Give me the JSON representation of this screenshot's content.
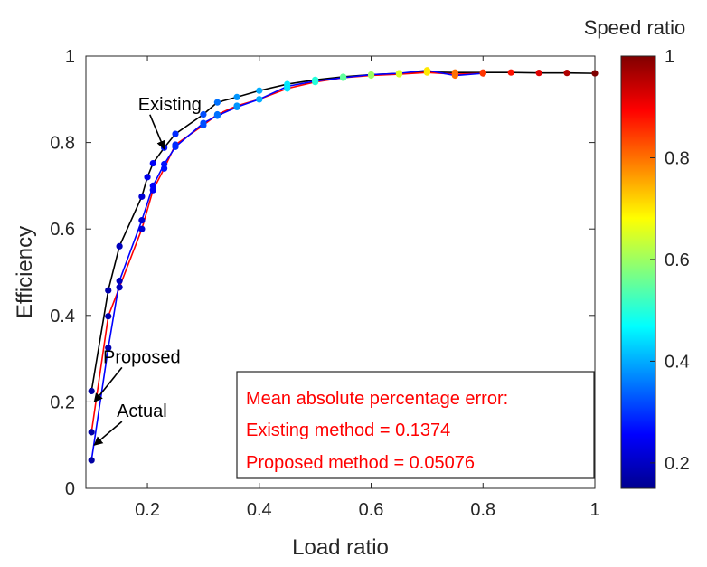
{
  "chart_data": {
    "type": "line",
    "xlabel": "Load ratio",
    "ylabel": "Efficiency",
    "xlim": [
      0.09,
      1.0
    ],
    "ylim": [
      0,
      1
    ],
    "xticks": [
      0.2,
      0.4,
      0.6,
      0.8,
      1
    ],
    "xtick_labels": [
      "0.2",
      "0.4",
      "0.6",
      "0.8",
      "1"
    ],
    "yticks": [
      0,
      0.2,
      0.4,
      0.6,
      0.8,
      1
    ],
    "ytick_labels": [
      "0",
      "0.2",
      "0.4",
      "0.6",
      "0.8",
      "1"
    ],
    "grid": false,
    "colorbar": {
      "title": "Speed ratio",
      "range": [
        0.15,
        1.0
      ],
      "ticks": [
        0.2,
        0.4,
        0.6,
        0.8,
        1
      ],
      "tick_labels": [
        "0.2",
        "0.4",
        "0.6",
        "0.8",
        "1"
      ],
      "colormap": "jet"
    },
    "series": [
      {
        "name": "Existing",
        "line_color": "#000000",
        "x": [
          0.1,
          0.13,
          0.15,
          0.19,
          0.2,
          0.21,
          0.23,
          0.25,
          0.3,
          0.325,
          0.36,
          0.4,
          0.45,
          0.5,
          0.55,
          0.6,
          0.65,
          0.7,
          0.75,
          0.8,
          0.85,
          0.9,
          0.95,
          1.0
        ],
        "y": [
          0.225,
          0.458,
          0.56,
          0.675,
          0.72,
          0.752,
          0.788,
          0.82,
          0.865,
          0.893,
          0.905,
          0.92,
          0.935,
          0.945,
          0.952,
          0.957,
          0.96,
          0.963,
          0.962,
          0.962,
          0.962,
          0.961,
          0.961,
          0.96
        ],
        "speed": [
          0.18,
          0.19,
          0.2,
          0.22,
          0.24,
          0.25,
          0.27,
          0.29,
          0.32,
          0.35,
          0.38,
          0.4,
          0.45,
          0.5,
          0.55,
          0.6,
          0.65,
          0.7,
          0.8,
          0.85,
          0.88,
          0.92,
          0.96,
          1.0
        ]
      },
      {
        "name": "Proposed",
        "line_color": "#ff0000",
        "x": [
          0.1,
          0.13,
          0.15,
          0.19,
          0.21,
          0.23,
          0.25,
          0.3,
          0.325,
          0.36,
          0.4,
          0.45,
          0.5,
          0.55,
          0.6,
          0.65,
          0.7,
          0.75,
          0.8
        ],
        "y": [
          0.13,
          0.398,
          0.465,
          0.6,
          0.69,
          0.74,
          0.795,
          0.84,
          0.865,
          0.885,
          0.9,
          0.925,
          0.94,
          0.95,
          0.955,
          0.958,
          0.962,
          0.958,
          0.96
        ],
        "speed": [
          0.18,
          0.19,
          0.2,
          0.22,
          0.25,
          0.27,
          0.29,
          0.32,
          0.35,
          0.38,
          0.4,
          0.45,
          0.5,
          0.55,
          0.6,
          0.65,
          0.7,
          0.8,
          0.85
        ]
      },
      {
        "name": "Actual",
        "line_color": "#0000ff",
        "x": [
          0.1,
          0.13,
          0.15,
          0.19,
          0.21,
          0.23,
          0.25,
          0.3,
          0.325,
          0.36,
          0.4,
          0.45,
          0.5,
          0.55,
          0.6,
          0.65,
          0.7,
          0.75,
          0.8
        ],
        "y": [
          0.065,
          0.325,
          0.48,
          0.62,
          0.7,
          0.75,
          0.79,
          0.845,
          0.862,
          0.882,
          0.9,
          0.93,
          0.942,
          0.95,
          0.957,
          0.96,
          0.967,
          0.955,
          0.96
        ],
        "speed": [
          0.18,
          0.19,
          0.2,
          0.22,
          0.25,
          0.27,
          0.29,
          0.32,
          0.35,
          0.38,
          0.4,
          0.45,
          0.5,
          0.55,
          0.6,
          0.65,
          0.7,
          0.8,
          0.85
        ]
      }
    ],
    "annotations": [
      {
        "text": "Existing",
        "x": 0.24,
        "y": 0.875,
        "arrow_to": [
          0.23,
          0.785
        ]
      },
      {
        "text": "Proposed",
        "x": 0.19,
        "y": 0.29,
        "arrow_to": [
          0.105,
          0.2
        ]
      },
      {
        "text": "Actual",
        "x": 0.19,
        "y": 0.165,
        "arrow_to": [
          0.105,
          0.1
        ]
      }
    ],
    "textbox": {
      "line1": "Mean absolute percentage error:",
      "line2": "Existing method = 0.1374",
      "line3": "Proposed method = 0.05076",
      "color": "#ff0000"
    }
  }
}
